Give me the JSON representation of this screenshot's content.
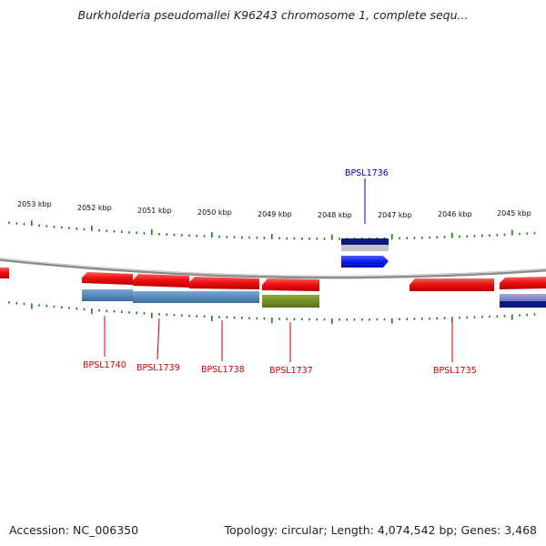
{
  "title": "Burkholderia pseudomallei K96243 chromosome 1, complete sequ...",
  "accession": "Accession: NC_006350",
  "summary": "Topology: circular; Length: 4,074,542 bp; Genes: 3,468",
  "colors": {
    "backbone": "#8a8a8a",
    "tick": "#1a7a1a",
    "gene_red": "#e81010",
    "gene_blue": "#1020e8",
    "label_red": "#cc0000",
    "label_blue": "#0000bb",
    "track_steel": "#4a7fb5",
    "track_olive": "#6b8a1f",
    "track_navy": "#0a1a80",
    "track_lavender": "#8a8ac8"
  },
  "kbp_labels": [
    "2053 kbp",
    "2052 kbp",
    "2051 kbp",
    "2050 kbp",
    "2049 kbp",
    "2048 kbp",
    "2047 kbp",
    "2046 kbp",
    "2045 kbp"
  ],
  "genes": [
    {
      "label": "BPSL1740",
      "color": "red"
    },
    {
      "label": "BPSL1739",
      "color": "red"
    },
    {
      "label": "BPSL1738",
      "color": "red"
    },
    {
      "label": "BPSL1737",
      "color": "red"
    },
    {
      "label": "BPSL1736",
      "color": "blue"
    },
    {
      "label": "BPSL1735",
      "color": "red"
    }
  ]
}
